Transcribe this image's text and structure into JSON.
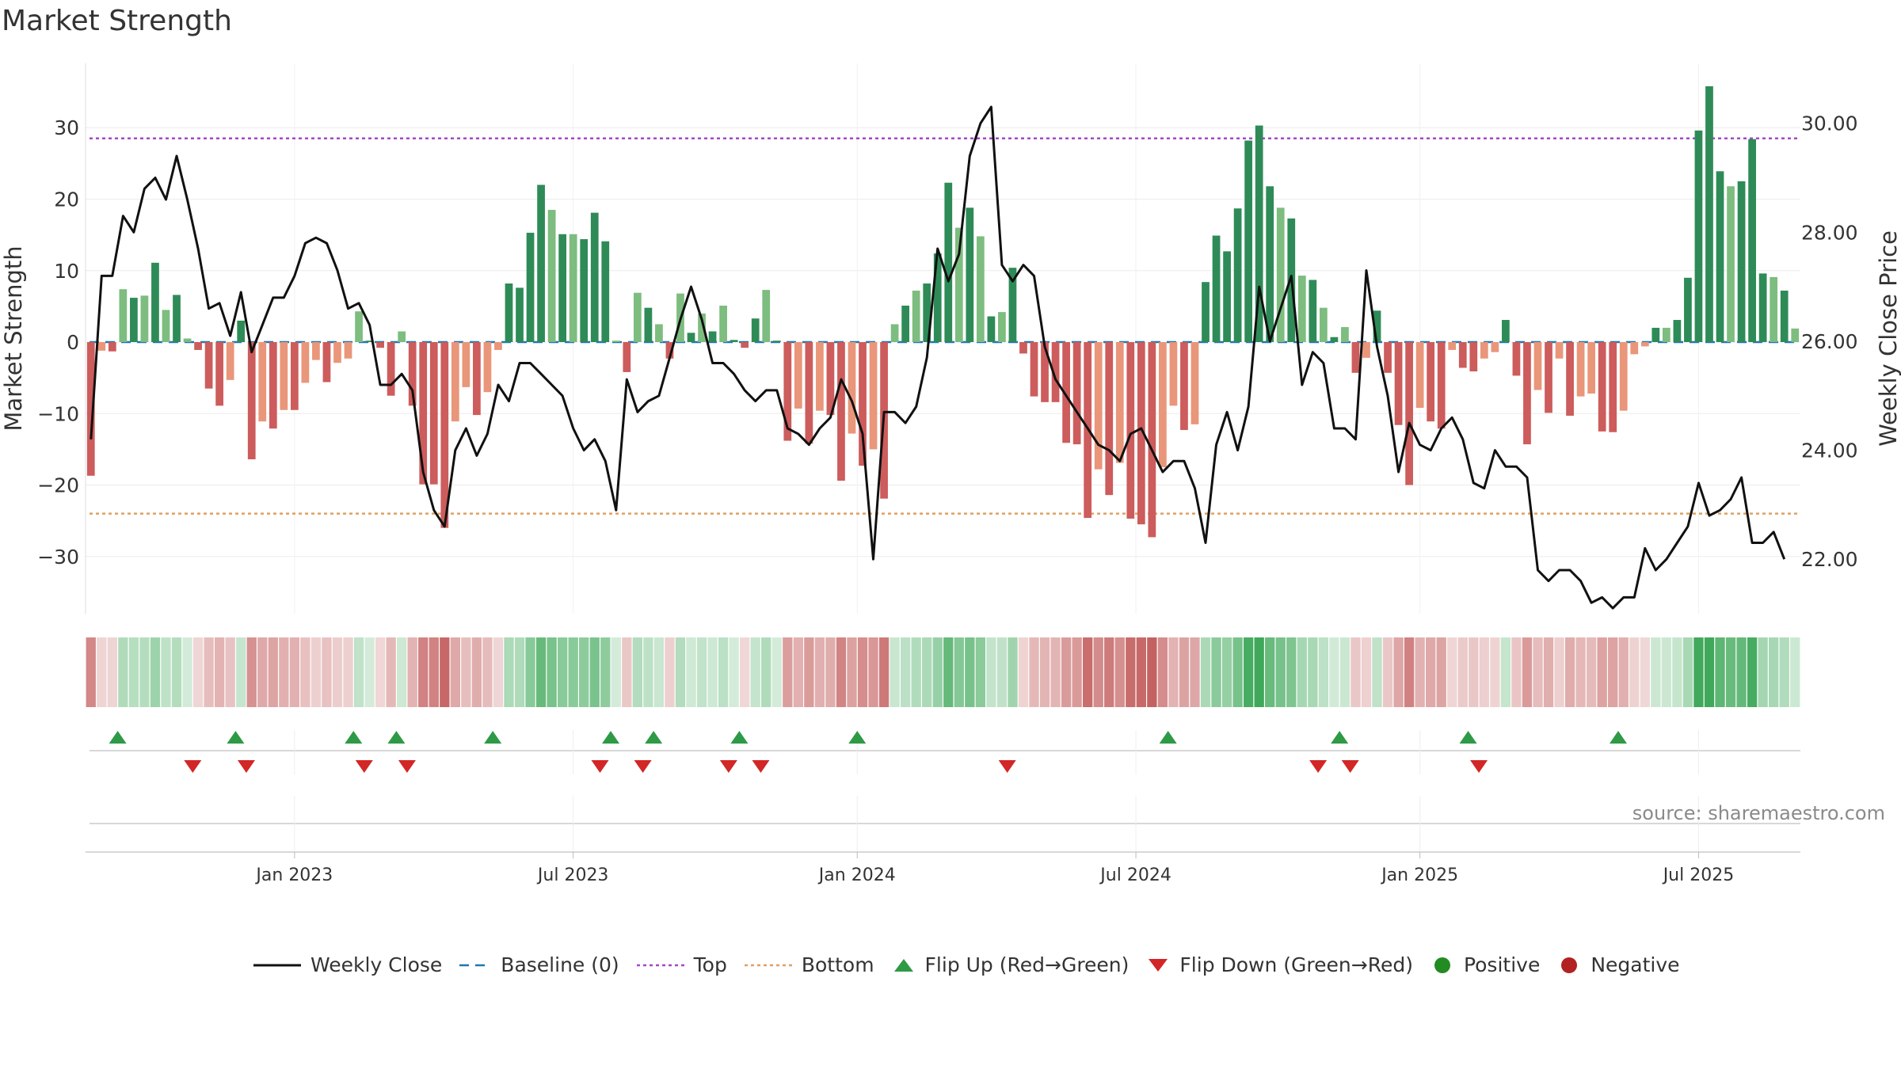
{
  "page": {
    "title": "Market Strength",
    "source": "source: sharemaestro.com"
  },
  "colors": {
    "strong_pos": "#2e8b57",
    "weak_pos": "#7dbd7f",
    "strong_neg": "#cd5c5c",
    "weak_neg": "#e9967a",
    "top": "#a646c9",
    "bottom": "#e0a060",
    "baseline": "#1f77b4",
    "flip_up": "#2e9a46",
    "flip_down": "#d32626",
    "positive": "#228b22",
    "negative": "#b22222",
    "close_line": "#111111"
  },
  "chart_data": {
    "type": "bar",
    "title": "Market Strength",
    "ylabel": "Market Strength",
    "y2label": "Weekly Close Price",
    "ylim": [
      -38,
      39
    ],
    "y2lim": [
      21.0,
      31.1
    ],
    "yticks": [
      -30,
      -20,
      -10,
      0,
      10,
      20,
      30
    ],
    "y2ticks": [
      22.0,
      24.0,
      26.0,
      28.0,
      30.0
    ],
    "ytick_labels": [
      "−30",
      "−20",
      "−10",
      "0",
      "10",
      "20",
      "30"
    ],
    "y2tick_labels": [
      "22.00",
      "24.00",
      "26.00",
      "28.00",
      "30.00"
    ],
    "xticks": [
      {
        "label": "Jan 2023",
        "week": 19.5
      },
      {
        "label": "Jul 2023",
        "week": 45.5
      },
      {
        "label": "Jan 2024",
        "week": 72
      },
      {
        "label": "Jul 2024",
        "week": 98
      },
      {
        "label": "Jan 2025",
        "week": 124.5
      },
      {
        "label": "Jul 2025",
        "week": 150.5
      }
    ],
    "top_line": 28.5,
    "bottom_line": -24,
    "baseline": 0,
    "grid": true,
    "legend_position": "bottom",
    "strength": [
      -18.7,
      -1.2,
      -1.3,
      7.4,
      6.2,
      6.5,
      11.1,
      4.5,
      6.6,
      0.5,
      -1.1,
      -6.5,
      -8.9,
      -5.3,
      3.0,
      -16.4,
      -11.1,
      -12.1,
      -9.5,
      -9.5,
      -5.7,
      -2.5,
      -5.6,
      -2.9,
      -2.3,
      4.3,
      0.2,
      -0.8,
      -7.5,
      1.5,
      -8.9,
      -19.9,
      -19.9,
      -26.0,
      -11.1,
      -6.3,
      -10.2,
      -7.0,
      -1.1,
      8.2,
      7.6,
      15.3,
      22.0,
      18.5,
      15.1,
      15.1,
      14.4,
      18.1,
      14.1,
      0.2,
      -4.2,
      6.9,
      4.8,
      2.5,
      -2.3,
      6.8,
      1.3,
      4.0,
      1.5,
      5.1,
      0.3,
      -0.8,
      3.3,
      7.3,
      0.2,
      -13.8,
      -9.3,
      -14.2,
      -9.6,
      -10.2,
      -19.4,
      -12.8,
      -17.3,
      -15.0,
      -21.9,
      2.5,
      5.1,
      7.2,
      8.2,
      12.4,
      22.3,
      16.0,
      18.8,
      14.8,
      3.6,
      4.2,
      10.4,
      -1.6,
      -7.6,
      -8.4,
      -8.4,
      -14.1,
      -14.3,
      -24.6,
      -17.8,
      -21.4,
      -16.9,
      -24.7,
      -25.5,
      -27.3,
      -17.5,
      -8.9,
      -12.3,
      -11.5,
      8.4,
      14.9,
      12.7,
      18.7,
      28.2,
      30.3,
      21.8,
      18.8,
      17.3,
      9.3,
      8.7,
      4.8,
      0.7,
      2.1,
      -4.3,
      -2.2,
      4.4,
      -4.3,
      -11.6,
      -20.0,
      -9.2,
      -11.1,
      -12.1,
      -1.1,
      -3.6,
      -4.1,
      -2.3,
      -1.4,
      3.1,
      -4.7,
      -14.3,
      -6.7,
      -9.9,
      -2.3,
      -10.3,
      -7.6,
      -7.2,
      -12.5,
      -12.6,
      -9.6,
      -1.7,
      -0.6,
      2.0,
      2.0,
      3.1,
      9.0,
      29.6,
      35.8,
      23.9,
      21.8,
      22.5,
      28.4,
      9.6,
      9.1,
      7.2,
      1.9
    ],
    "weekly_close": [
      24.2,
      27.2,
      27.2,
      28.3,
      28.0,
      28.8,
      29.0,
      28.6,
      29.4,
      28.6,
      27.7,
      26.6,
      26.7,
      26.1,
      26.9,
      25.8,
      26.3,
      26.8,
      26.8,
      27.2,
      27.8,
      27.9,
      27.8,
      27.3,
      26.6,
      26.7,
      26.3,
      25.2,
      25.2,
      25.4,
      25.1,
      23.6,
      22.9,
      22.6,
      24.0,
      24.4,
      23.9,
      24.3,
      25.2,
      24.9,
      25.6,
      25.6,
      25.4,
      25.2,
      25.0,
      24.4,
      24.0,
      24.2,
      23.8,
      22.9,
      25.3,
      24.7,
      24.9,
      25.0,
      25.7,
      26.4,
      27.0,
      26.4,
      25.6,
      25.6,
      25.4,
      25.1,
      24.9,
      25.1,
      25.1,
      24.4,
      24.3,
      24.1,
      24.4,
      24.6,
      25.3,
      24.9,
      24.3,
      22.0,
      24.7,
      24.7,
      24.5,
      24.8,
      25.7,
      27.7,
      27.1,
      27.6,
      29.4,
      30.0,
      30.3,
      27.4,
      27.1,
      27.4,
      27.2,
      25.9,
      25.3,
      25.0,
      24.7,
      24.4,
      24.1,
      24.0,
      23.8,
      24.3,
      24.4,
      24.0,
      23.6,
      23.8,
      23.8,
      23.3,
      22.3,
      24.1,
      24.7,
      24.0,
      24.8,
      27.0,
      26.0,
      26.6,
      27.2,
      25.2,
      25.8,
      25.6,
      24.4,
      24.4,
      24.2,
      27.3,
      25.9,
      25.0,
      23.6,
      24.5,
      24.1,
      24.0,
      24.4,
      24.6,
      24.2,
      23.4,
      23.3,
      24.0,
      23.7,
      23.7,
      23.5,
      21.8,
      21.6,
      21.8,
      21.8,
      21.6,
      21.2,
      21.3,
      21.1,
      21.3,
      21.3,
      22.2,
      21.8,
      22.0,
      22.3,
      22.6,
      23.4,
      22.8,
      22.9,
      23.1,
      23.5,
      22.3,
      22.3,
      22.5,
      22.0
    ],
    "flip_up_weeks": [
      3,
      14,
      25,
      29,
      38,
      49,
      53,
      61,
      72,
      101,
      117,
      129,
      143
    ],
    "flip_down_weeks": [
      10,
      15,
      26,
      30,
      48,
      52,
      60,
      63,
      86,
      115,
      118,
      130
    ],
    "legend": [
      {
        "key": "close",
        "label": "Weekly Close"
      },
      {
        "key": "baseline",
        "label": "Baseline (0)"
      },
      {
        "key": "top",
        "label": "Top"
      },
      {
        "key": "bottom",
        "label": "Bottom"
      },
      {
        "key": "flip_up",
        "label": "Flip Up (Red→Green)"
      },
      {
        "key": "flip_down",
        "label": "Flip Down (Green→Red)"
      },
      {
        "key": "positive",
        "label": "Positive"
      },
      {
        "key": "negative",
        "label": "Negative"
      }
    ]
  }
}
